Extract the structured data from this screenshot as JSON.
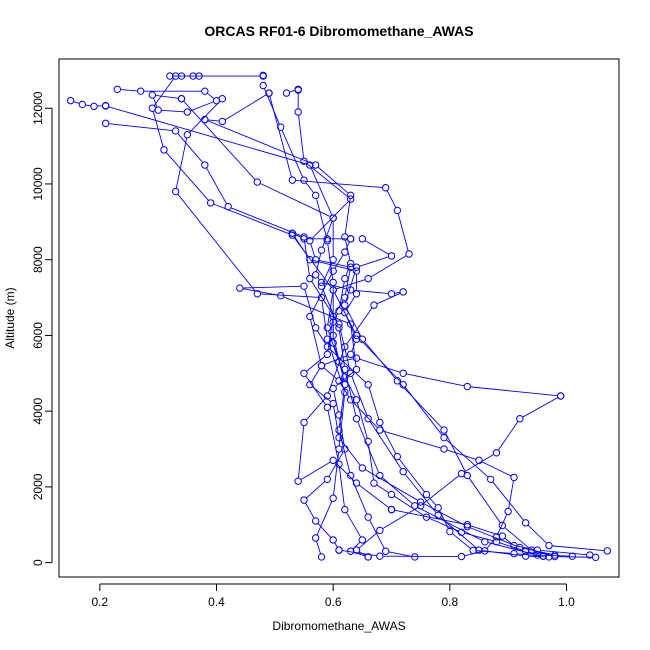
{
  "chart_data": {
    "type": "line",
    "title": "ORCAS RF01-6 Dibromomethane_AWAS",
    "xlabel": "Dibromomethane_AWAS",
    "ylabel": "Altitude (m)",
    "xlim": [
      0.13,
      1.09
    ],
    "ylim": [
      -380,
      13300
    ],
    "xticks": [
      0.2,
      0.4,
      0.6,
      0.8,
      1.0
    ],
    "xtick_labels": [
      "0.2",
      "0.4",
      "0.6",
      "0.8",
      "1.0"
    ],
    "yticks": [
      0,
      2000,
      4000,
      6000,
      8000,
      10000,
      12000
    ],
    "ytick_labels": [
      "0",
      "2000",
      "4000",
      "6000",
      "8000",
      "10000",
      "12000"
    ],
    "grid": false,
    "legend": "none",
    "colors": {
      "series": "#0000ff",
      "axis": "#000000"
    },
    "series": [
      {
        "points": [
          [
            0.97,
            150
          ],
          [
            0.93,
            170
          ],
          [
            0.85,
            330
          ],
          [
            0.78,
            1250
          ],
          [
            0.72,
            2400
          ],
          [
            0.66,
            3800
          ],
          [
            0.63,
            5000
          ],
          [
            0.61,
            6300
          ],
          [
            0.56,
            7500
          ],
          [
            0.55,
            8600
          ],
          [
            0.42,
            9400
          ],
          [
            0.38,
            10500
          ],
          [
            0.33,
            11400
          ],
          [
            0.21,
            11600
          ]
        ]
      },
      {
        "points": [
          [
            0.15,
            12200
          ],
          [
            0.17,
            12100
          ],
          [
            0.19,
            12050
          ],
          [
            0.21,
            12070
          ]
        ]
      },
      {
        "points": [
          [
            0.21,
            12060
          ],
          [
            0.56,
            10500
          ],
          [
            0.6,
            9100
          ],
          [
            0.6,
            8000
          ],
          [
            0.58,
            7300
          ],
          [
            0.61,
            6200
          ],
          [
            0.62,
            5100
          ],
          [
            0.64,
            3800
          ],
          [
            0.68,
            2300
          ],
          [
            0.74,
            1500
          ],
          [
            0.86,
            550
          ],
          [
            0.95,
            200
          ],
          [
            1.01,
            170
          ]
        ]
      },
      {
        "points": [
          [
            1.07,
            310
          ],
          [
            0.97,
            450
          ],
          [
            0.93,
            1050
          ],
          [
            0.87,
            2200
          ],
          [
            0.79,
            3300
          ],
          [
            0.72,
            4700
          ],
          [
            0.64,
            6000
          ],
          [
            0.6,
            7200
          ],
          [
            0.53,
            8650
          ],
          [
            0.39,
            9500
          ],
          [
            0.31,
            10900
          ],
          [
            0.29,
            12000
          ],
          [
            0.33,
            12850
          ],
          [
            0.37,
            12850
          ]
        ]
      },
      {
        "points": [
          [
            0.32,
            12850
          ],
          [
            0.34,
            12850
          ],
          [
            0.36,
            12850
          ],
          [
            0.48,
            12850
          ],
          [
            0.48,
            12870
          ]
        ]
      },
      {
        "points": [
          [
            0.48,
            12600
          ],
          [
            0.51,
            11500
          ],
          [
            0.55,
            10100
          ],
          [
            0.57,
            9700
          ],
          [
            0.59,
            8500
          ],
          [
            0.6,
            7400
          ],
          [
            0.6,
            6000
          ],
          [
            0.62,
            4700
          ],
          [
            0.61,
            3500
          ],
          [
            0.63,
            2300
          ],
          [
            0.66,
            1200
          ],
          [
            0.69,
            300
          ],
          [
            0.74,
            150
          ]
        ]
      },
      {
        "points": [
          [
            1.05,
            140
          ],
          [
            0.98,
            160
          ],
          [
            0.94,
            330
          ],
          [
            0.89,
            980
          ],
          [
            0.83,
            2300
          ],
          [
            0.79,
            3500
          ],
          [
            0.71,
            4800
          ],
          [
            0.65,
            5900
          ],
          [
            0.62,
            6800
          ],
          [
            0.64,
            7800
          ],
          [
            0.7,
            8100
          ],
          [
            0.65,
            8550
          ]
        ]
      },
      {
        "points": [
          [
            0.41,
            12250
          ],
          [
            0.35,
            11300
          ],
          [
            0.33,
            9800
          ],
          [
            0.47,
            7100
          ],
          [
            0.58,
            7000
          ],
          [
            0.59,
            5900
          ],
          [
            0.62,
            4500
          ],
          [
            0.61,
            3000
          ],
          [
            0.6,
            1700
          ],
          [
            0.57,
            650
          ],
          [
            0.58,
            150
          ]
        ]
      },
      {
        "points": [
          [
            0.23,
            12500
          ],
          [
            0.27,
            12450
          ],
          [
            0.38,
            12450
          ],
          [
            0.4,
            12200
          ],
          [
            0.35,
            11900
          ],
          [
            0.3,
            11950
          ],
          [
            0.29,
            12350
          ],
          [
            0.34,
            12250
          ]
        ]
      },
      {
        "points": [
          [
            0.34,
            12250
          ],
          [
            0.47,
            10050
          ],
          [
            0.6,
            9100
          ],
          [
            0.58,
            8250
          ],
          [
            0.57,
            7600
          ],
          [
            0.58,
            7400
          ],
          [
            0.63,
            7200
          ],
          [
            0.7,
            7100
          ],
          [
            0.72,
            7150
          ],
          [
            0.67,
            6800
          ],
          [
            0.62,
            5700
          ],
          [
            0.59,
            4400
          ],
          [
            0.55,
            3700
          ],
          [
            0.54,
            2150
          ],
          [
            0.6,
            2700
          ],
          [
            0.64,
            2100
          ],
          [
            0.7,
            1400
          ]
        ]
      },
      {
        "points": [
          [
            0.7,
            1400
          ],
          [
            0.83,
            1000
          ],
          [
            0.89,
            700
          ],
          [
            0.91,
            450
          ],
          [
            0.95,
            330
          ],
          [
            1.04,
            200
          ]
        ]
      },
      {
        "points": [
          [
            0.52,
            12400
          ],
          [
            0.54,
            12500
          ],
          [
            0.54,
            12480
          ],
          [
            0.54,
            11900
          ],
          [
            0.55,
            10600
          ],
          [
            0.63,
            9600
          ],
          [
            0.56,
            8500
          ],
          [
            0.57,
            8000
          ],
          [
            0.63,
            7800
          ],
          [
            0.62,
            7000
          ],
          [
            0.6,
            6500
          ],
          [
            0.59,
            5500
          ],
          [
            0.55,
            5000
          ],
          [
            0.59,
            4100
          ],
          [
            0.61,
            2600
          ],
          [
            0.62,
            1400
          ],
          [
            0.65,
            600
          ],
          [
            0.63,
            300
          ],
          [
            0.66,
            150
          ]
        ]
      },
      {
        "points": [
          [
            0.66,
            150
          ],
          [
            0.64,
            330
          ],
          [
            0.68,
            850
          ],
          [
            0.75,
            1500
          ],
          [
            0.82,
            2350
          ],
          [
            0.88,
            2900
          ],
          [
            0.92,
            3800
          ],
          [
            0.99,
            4400
          ]
        ]
      },
      {
        "points": [
          [
            0.99,
            4400
          ],
          [
            0.83,
            4650
          ],
          [
            0.72,
            5000
          ],
          [
            0.64,
            5400
          ],
          [
            0.61,
            5300
          ],
          [
            0.59,
            6200
          ],
          [
            0.6,
            7200
          ],
          [
            0.66,
            7500
          ],
          [
            0.73,
            8150
          ],
          [
            0.71,
            9300
          ],
          [
            0.69,
            9900
          ],
          [
            0.53,
            10100
          ],
          [
            0.49,
            12400
          ]
        ]
      },
      {
        "points": [
          [
            0.49,
            12400
          ],
          [
            0.41,
            11650
          ],
          [
            0.38,
            11700
          ]
        ]
      },
      {
        "points": [
          [
            0.38,
            11700
          ],
          [
            0.57,
            10500
          ],
          [
            0.63,
            9700
          ],
          [
            0.62,
            8600
          ],
          [
            0.63,
            7900
          ],
          [
            0.62,
            7500
          ],
          [
            0.61,
            6650
          ],
          [
            0.6,
            6350
          ],
          [
            0.6,
            5800
          ],
          [
            0.62,
            4900
          ],
          [
            0.64,
            4300
          ],
          [
            0.66,
            3200
          ],
          [
            0.67,
            2100
          ],
          [
            0.7,
            1800
          ],
          [
            0.76,
            1200
          ],
          [
            0.82,
            800
          ],
          [
            0.88,
            550
          ],
          [
            0.93,
            300
          ],
          [
            0.96,
            170
          ]
        ]
      },
      {
        "points": [
          [
            0.96,
            170
          ],
          [
            0.91,
            240
          ],
          [
            0.84,
            320
          ],
          [
            0.8,
            820
          ],
          [
            0.78,
            1450
          ],
          [
            0.76,
            1800
          ],
          [
            0.71,
            2800
          ],
          [
            0.68,
            3700
          ],
          [
            0.66,
            4700
          ],
          [
            0.59,
            5700
          ],
          [
            0.57,
            6200
          ],
          [
            0.55,
            7300
          ],
          [
            0.44,
            7250
          ],
          [
            0.51,
            7050
          ],
          [
            0.63,
            6300
          ],
          [
            0.64,
            5100
          ],
          [
            0.6,
            4600
          ],
          [
            0.61,
            3900
          ],
          [
            0.62,
            3000
          ],
          [
            0.59,
            2200
          ],
          [
            0.55,
            1650
          ],
          [
            0.57,
            1100
          ],
          [
            0.6,
            600
          ],
          [
            0.61,
            330
          ]
        ]
      },
      {
        "points": [
          [
            0.61,
            330
          ],
          [
            0.68,
            170
          ],
          [
            0.82,
            160
          ],
          [
            0.86,
            310
          ],
          [
            0.88,
            680
          ],
          [
            0.9,
            1350
          ],
          [
            0.91,
            2250
          ],
          [
            0.85,
            2700
          ],
          [
            0.79,
            3000
          ],
          [
            0.68,
            3500
          ],
          [
            0.63,
            4300
          ],
          [
            0.61,
            4800
          ],
          [
            0.58,
            5200
          ],
          [
            0.56,
            6500
          ],
          [
            0.6,
            7700
          ],
          [
            0.62,
            8200
          ],
          [
            0.63,
            8550
          ]
        ]
      },
      {
        "points": [
          [
            0.63,
            8550
          ],
          [
            0.59,
            8550
          ],
          [
            0.55,
            8550
          ],
          [
            0.53,
            8700
          ]
        ]
      },
      {
        "points": [
          [
            0.53,
            8700
          ],
          [
            0.56,
            8000
          ],
          [
            0.64,
            7700
          ],
          [
            0.64,
            7100
          ],
          [
            0.62,
            6600
          ],
          [
            0.64,
            5900
          ],
          [
            0.63,
            5500
          ],
          [
            0.58,
            5200
          ],
          [
            0.56,
            4700
          ],
          [
            0.6,
            4200
          ],
          [
            0.61,
            3300
          ],
          [
            0.65,
            2500
          ],
          [
            0.75,
            1600
          ],
          [
            0.83,
            950
          ],
          [
            0.92,
            400
          ],
          [
            0.98,
            200
          ]
        ]
      }
    ]
  }
}
